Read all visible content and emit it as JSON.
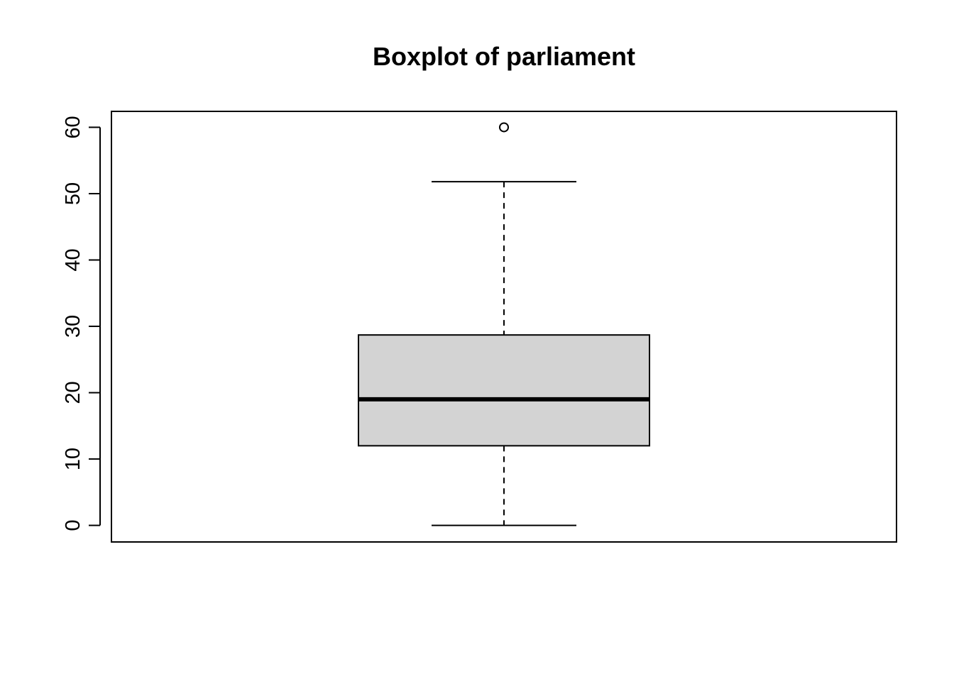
{
  "chart_data": {
    "type": "boxplot",
    "title": "Boxplot of parliament",
    "xlabel": "",
    "ylabel": "",
    "ylim": [
      -2.5,
      62.4
    ],
    "y_ticks": [
      0,
      10,
      20,
      30,
      40,
      50,
      60
    ],
    "y_tick_labels": [
      "0",
      "10",
      "20",
      "30",
      "40",
      "50",
      "60"
    ],
    "box": {
      "min": 0,
      "q1": 12.0,
      "median": 19.0,
      "q3": 28.7,
      "max": 51.8,
      "outliers": [
        60.0
      ]
    },
    "box_fill": "#d3d3d3",
    "grid": false
  }
}
